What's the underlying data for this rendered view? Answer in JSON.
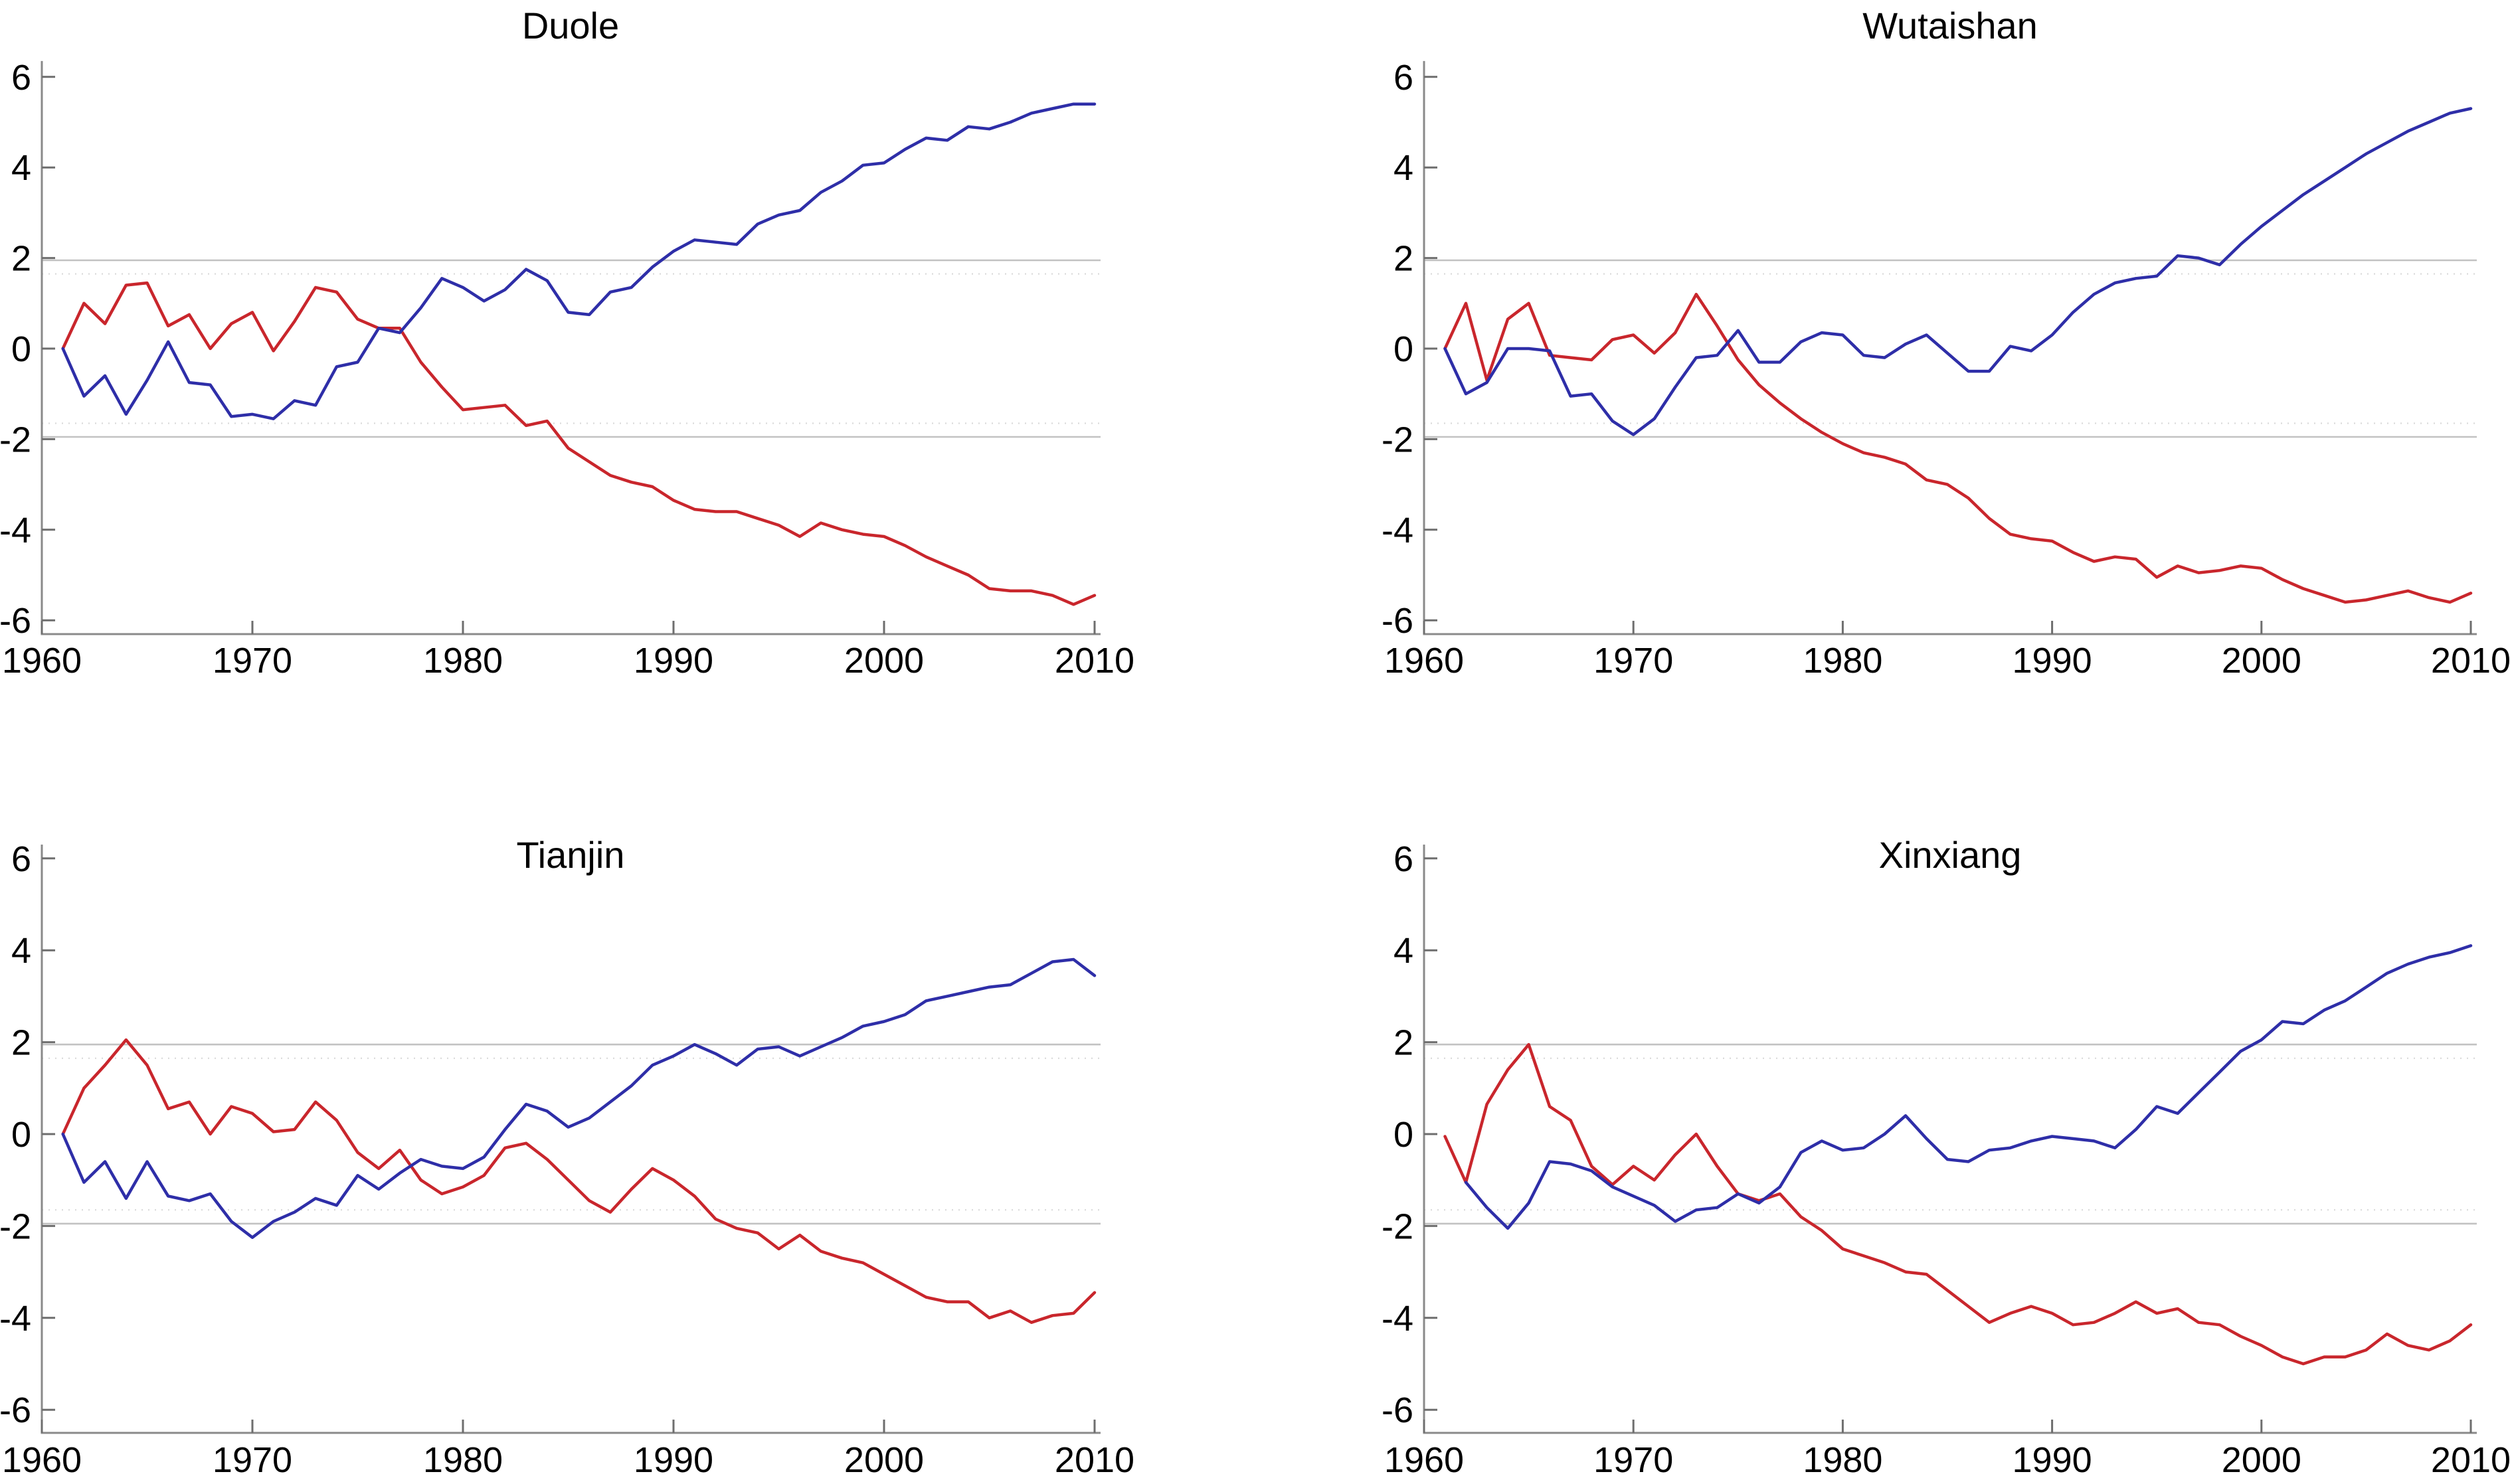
{
  "styles": {
    "background": "#ffffff",
    "axis_color": "#8a8a8a",
    "tick_color": "#6e6e6e",
    "label_color": "#000000",
    "critical_solid_color": "#c2c2c2",
    "critical_dotted_color": "#d9d9d9",
    "series_blue": "#2e2ea8",
    "series_red": "#c9262c"
  },
  "chart_data": [
    {
      "type": "line",
      "title": "Duole",
      "position": "top-left",
      "xlabel": "",
      "ylabel": "",
      "xlim": [
        1960,
        2010.6
      ],
      "ylim": [
        -6.35,
        6.35
      ],
      "x_ticks": [
        1960,
        1970,
        1980,
        1990,
        2000,
        2010
      ],
      "x_tick_labels": [
        "1960",
        "1970",
        "1980",
        "1990",
        "2000",
        "2010"
      ],
      "y_ticks": [
        -6,
        -4,
        -2,
        0,
        2,
        4,
        6
      ],
      "y_tick_labels": [
        "-6",
        "-4",
        "-2",
        "0",
        "2",
        "4",
        "6"
      ],
      "legend_position": "none",
      "grid": "horizontal critical-value lines only",
      "critical_values": {
        "solid": [
          1.95,
          -1.95
        ],
        "dotted": [
          1.65,
          -1.65
        ]
      },
      "years": [
        1961,
        1962,
        1963,
        1964,
        1965,
        1966,
        1967,
        1968,
        1969,
        1970,
        1971,
        1972,
        1973,
        1974,
        1975,
        1976,
        1977,
        1978,
        1979,
        1980,
        1981,
        1982,
        1983,
        1984,
        1985,
        1986,
        1987,
        1988,
        1989,
        1990,
        1991,
        1992,
        1993,
        1994,
        1995,
        1996,
        1997,
        1998,
        1999,
        2000,
        2001,
        2002,
        2003,
        2004,
        2005,
        2006,
        2007,
        2008,
        2009,
        2010
      ],
      "series": [
        {
          "name": "red-statistic",
          "color": "#c9262c",
          "values": [
            0,
            1.0,
            0.55,
            1.4,
            1.45,
            0.5,
            0.75,
            0.0,
            0.55,
            0.8,
            -0.05,
            0.6,
            1.35,
            1.25,
            0.65,
            0.45,
            0.45,
            -0.3,
            -0.85,
            -1.35,
            -1.3,
            -1.25,
            -1.7,
            -1.6,
            -2.2,
            -2.5,
            -2.8,
            -2.95,
            -3.05,
            -3.35,
            -3.55,
            -3.6,
            -3.6,
            -3.75,
            -3.9,
            -4.15,
            -3.85,
            -4.0,
            -4.1,
            -4.15,
            -4.35,
            -4.6,
            -4.8,
            -5.0,
            -5.3,
            -5.35,
            -5.35,
            -5.45,
            -5.65,
            -5.45
          ]
        },
        {
          "name": "blue-statistic",
          "color": "#2e2ea8",
          "values": [
            0,
            -1.05,
            -0.6,
            -1.45,
            -0.7,
            0.15,
            -0.75,
            -0.8,
            -1.5,
            -1.45,
            -1.55,
            -1.15,
            -1.25,
            -0.4,
            -0.3,
            0.45,
            0.35,
            0.9,
            1.55,
            1.35,
            1.05,
            1.3,
            1.75,
            1.5,
            0.8,
            0.75,
            1.25,
            1.35,
            1.8,
            2.15,
            2.4,
            2.35,
            2.3,
            2.75,
            2.95,
            3.05,
            3.45,
            3.7,
            4.05,
            4.1,
            4.4,
            4.65,
            4.6,
            4.9,
            4.85,
            5.0,
            5.2,
            5.3,
            5.4,
            5.4
          ]
        }
      ]
    },
    {
      "type": "line",
      "title": "Wutaishan",
      "position": "top-right",
      "xlabel": "",
      "ylabel": "",
      "xlim": [
        1960,
        2010.6
      ],
      "ylim": [
        -6.35,
        6.35
      ],
      "x_ticks": [
        1960,
        1970,
        1980,
        1990,
        2000,
        2010
      ],
      "x_tick_labels": [
        "1960",
        "1970",
        "1980",
        "1990",
        "2000",
        "2010"
      ],
      "y_ticks": [
        -6,
        -4,
        -2,
        0,
        2,
        4,
        6
      ],
      "y_tick_labels": [
        "-6",
        "-4",
        "-2",
        "0",
        "2",
        "4",
        "6"
      ],
      "legend_position": "none",
      "grid": "horizontal critical-value lines only",
      "critical_values": {
        "solid": [
          1.95,
          -1.95
        ],
        "dotted": [
          1.65,
          -1.65
        ]
      },
      "years": [
        1961,
        1962,
        1963,
        1964,
        1965,
        1966,
        1967,
        1968,
        1969,
        1970,
        1971,
        1972,
        1973,
        1974,
        1975,
        1976,
        1977,
        1978,
        1979,
        1980,
        1981,
        1982,
        1983,
        1984,
        1985,
        1986,
        1987,
        1988,
        1989,
        1990,
        1991,
        1992,
        1993,
        1994,
        1995,
        1996,
        1997,
        1998,
        1999,
        2000,
        2001,
        2002,
        2003,
        2004,
        2005,
        2006,
        2007,
        2008,
        2009,
        2010
      ],
      "series": [
        {
          "name": "red-statistic",
          "color": "#c9262c",
          "values": [
            0,
            1.0,
            -0.7,
            0.65,
            1.0,
            -0.15,
            -0.2,
            -0.25,
            0.2,
            0.3,
            -0.1,
            0.35,
            1.2,
            0.5,
            -0.25,
            -0.8,
            -1.2,
            -1.55,
            -1.85,
            -2.1,
            -2.3,
            -2.4,
            -2.55,
            -2.9,
            -3.0,
            -3.3,
            -3.75,
            -4.1,
            -4.2,
            -4.25,
            -4.5,
            -4.7,
            -4.6,
            -4.65,
            -5.05,
            -4.8,
            -4.95,
            -4.9,
            -4.8,
            -4.85,
            -5.1,
            -5.3,
            -5.45,
            -5.6,
            -5.55,
            -5.45,
            -5.35,
            -5.5,
            -5.6,
            -5.4
          ]
        },
        {
          "name": "blue-statistic",
          "color": "#2e2ea8",
          "values": [
            0,
            -1.0,
            -0.75,
            0.0,
            0.0,
            -0.05,
            -1.05,
            -1.0,
            -1.6,
            -1.9,
            -1.55,
            -0.85,
            -0.2,
            -0.15,
            0.4,
            -0.3,
            -0.3,
            0.15,
            0.35,
            0.3,
            -0.15,
            -0.2,
            0.1,
            0.3,
            -0.1,
            -0.5,
            -0.5,
            0.05,
            -0.05,
            0.3,
            0.8,
            1.2,
            1.45,
            1.55,
            1.6,
            2.05,
            2.0,
            1.85,
            2.3,
            2.7,
            3.05,
            3.4,
            3.7,
            4.0,
            4.3,
            4.55,
            4.8,
            5.0,
            5.2,
            5.3
          ]
        }
      ]
    },
    {
      "type": "line",
      "title": "Tianjin",
      "position": "bottom-left",
      "xlabel": "",
      "ylabel": "",
      "xlim": [
        1960,
        2010.6
      ],
      "ylim": [
        -6.3,
        6.3
      ],
      "x_ticks": [
        1960,
        1970,
        1980,
        1990,
        2000,
        2010
      ],
      "x_tick_labels": [
        "1960",
        "1970",
        "1980",
        "1990",
        "2000",
        "2010"
      ],
      "y_ticks": [
        -6,
        -4,
        -2,
        0,
        2,
        4,
        6
      ],
      "y_tick_labels": [
        "-6",
        "-4",
        "-2",
        "0",
        "2",
        "4",
        "6"
      ],
      "legend_position": "none",
      "grid": "horizontal critical-value lines only",
      "critical_values": {
        "solid": [
          1.95,
          -1.95
        ],
        "dotted": [
          1.65,
          -1.65
        ]
      },
      "years": [
        1961,
        1962,
        1963,
        1964,
        1965,
        1966,
        1967,
        1968,
        1969,
        1970,
        1971,
        1972,
        1973,
        1974,
        1975,
        1976,
        1977,
        1978,
        1979,
        1980,
        1981,
        1982,
        1983,
        1984,
        1985,
        1986,
        1987,
        1988,
        1989,
        1990,
        1991,
        1992,
        1993,
        1994,
        1995,
        1996,
        1997,
        1998,
        1999,
        2000,
        2001,
        2002,
        2003,
        2004,
        2005,
        2006,
        2007,
        2008,
        2009,
        2010
      ],
      "series": [
        {
          "name": "red-statistic",
          "color": "#c9262c",
          "values": [
            0,
            1.0,
            1.5,
            2.05,
            1.5,
            0.55,
            0.7,
            0.0,
            0.6,
            0.45,
            0.05,
            0.1,
            0.7,
            0.3,
            -0.4,
            -0.75,
            -0.35,
            -1.0,
            -1.3,
            -1.15,
            -0.9,
            -0.3,
            -0.2,
            -0.55,
            -1.0,
            -1.45,
            -1.7,
            -1.2,
            -0.75,
            -1.0,
            -1.35,
            -1.85,
            -2.05,
            -2.15,
            -2.5,
            -2.2,
            -2.55,
            -2.7,
            -2.8,
            -3.05,
            -3.3,
            -3.55,
            -3.65,
            -3.65,
            -4.0,
            -3.85,
            -4.1,
            -3.95,
            -3.9,
            -3.45
          ]
        },
        {
          "name": "blue-statistic",
          "color": "#2e2ea8",
          "values": [
            0,
            -1.05,
            -0.6,
            -1.4,
            -0.6,
            -1.35,
            -1.45,
            -1.3,
            -1.9,
            -2.25,
            -1.9,
            -1.7,
            -1.4,
            -1.55,
            -0.9,
            -1.2,
            -0.85,
            -0.55,
            -0.7,
            -0.75,
            -0.5,
            0.1,
            0.65,
            0.5,
            0.15,
            0.35,
            0.7,
            1.05,
            1.5,
            1.7,
            1.95,
            1.75,
            1.5,
            1.85,
            1.9,
            1.7,
            1.9,
            2.1,
            2.35,
            2.45,
            2.6,
            2.9,
            3.0,
            3.1,
            3.2,
            3.25,
            3.5,
            3.75,
            3.8,
            3.45
          ]
        }
      ]
    },
    {
      "type": "line",
      "title": "Xinxiang",
      "position": "bottom-right",
      "xlabel": "",
      "ylabel": "",
      "xlim": [
        1960,
        2010.6
      ],
      "ylim": [
        -6.3,
        6.3
      ],
      "x_ticks": [
        1960,
        1970,
        1980,
        1990,
        2000,
        2010
      ],
      "x_tick_labels": [
        "1960",
        "1970",
        "1980",
        "1990",
        "2000",
        "2010"
      ],
      "y_ticks": [
        -6,
        -4,
        -2,
        0,
        2,
        4,
        6
      ],
      "y_tick_labels": [
        "-6",
        "-4",
        "-2",
        "0",
        "2",
        "4",
        "6"
      ],
      "legend_position": "none",
      "grid": "horizontal critical-value lines only",
      "critical_values": {
        "solid": [
          1.95,
          -1.95
        ],
        "dotted": [
          1.65,
          -1.65
        ]
      },
      "years": [
        1961,
        1962,
        1963,
        1964,
        1965,
        1966,
        1967,
        1968,
        1969,
        1970,
        1971,
        1972,
        1973,
        1974,
        1975,
        1976,
        1977,
        1978,
        1979,
        1980,
        1981,
        1982,
        1983,
        1984,
        1985,
        1986,
        1987,
        1988,
        1989,
        1990,
        1991,
        1992,
        1993,
        1994,
        1995,
        1996,
        1997,
        1998,
        1999,
        2000,
        2001,
        2002,
        2003,
        2004,
        2005,
        2006,
        2007,
        2008,
        2009,
        2010
      ],
      "series": [
        {
          "name": "red-statistic",
          "color": "#c9262c",
          "values": [
            -0.05,
            -1.05,
            0.65,
            1.4,
            1.95,
            0.6,
            0.3,
            -0.7,
            -1.1,
            -0.7,
            -1.0,
            -0.45,
            0.0,
            -0.7,
            -1.3,
            -1.45,
            -1.3,
            -1.8,
            -2.1,
            -2.5,
            -2.65,
            -2.8,
            -3.0,
            -3.05,
            -3.4,
            -3.75,
            -4.1,
            -3.9,
            -3.75,
            -3.9,
            -4.15,
            -4.1,
            -3.9,
            -3.65,
            -3.9,
            -3.8,
            -4.1,
            -4.15,
            -4.4,
            -4.6,
            -4.85,
            -5.0,
            -4.85,
            -4.85,
            -4.7,
            -4.35,
            -4.6,
            -4.7,
            -4.5,
            -4.15
          ]
        },
        {
          "name": "blue-statistic",
          "color": "#2e2ea8",
          "values": [
            null,
            -1.05,
            -1.6,
            -2.05,
            -1.5,
            -0.6,
            -0.65,
            -0.8,
            -1.15,
            -1.35,
            -1.55,
            -1.9,
            -1.65,
            -1.6,
            -1.3,
            -1.5,
            -1.15,
            -0.4,
            -0.15,
            -0.35,
            -0.3,
            0.0,
            0.4,
            -0.1,
            -0.55,
            -0.6,
            -0.35,
            -0.3,
            -0.15,
            -0.05,
            -0.1,
            -0.15,
            -0.3,
            0.1,
            0.6,
            0.45,
            0.9,
            1.35,
            1.8,
            2.05,
            2.45,
            2.4,
            2.7,
            2.9,
            3.2,
            3.5,
            3.7,
            3.85,
            3.95,
            4.1
          ]
        }
      ]
    }
  ]
}
